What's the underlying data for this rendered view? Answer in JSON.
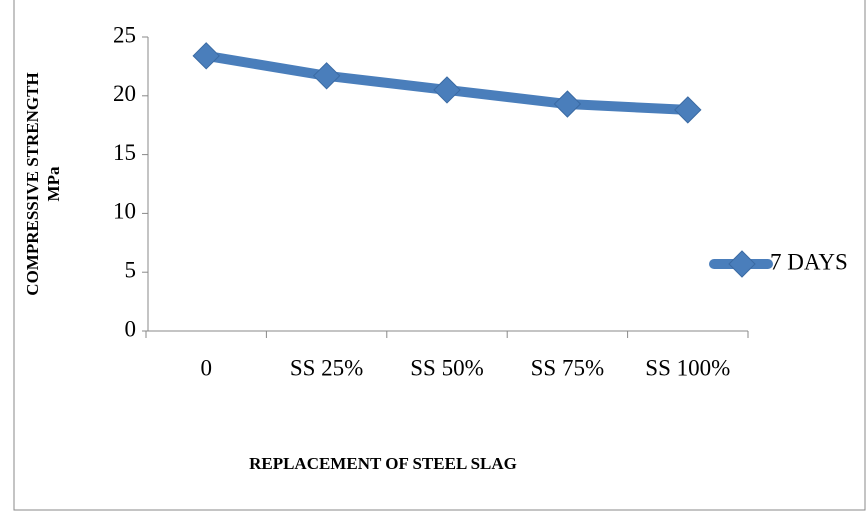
{
  "chart_data": {
    "type": "line",
    "y_label": [
      "COMPRESSIVE STRENGTH",
      "MPa"
    ],
    "x_label": "REPLACEMENT OF STEEL SLAG",
    "categories": [
      "0",
      "SS 25%",
      "SS 50%",
      "SS 75%",
      "SS 100%"
    ],
    "series": [
      {
        "name": "7 DAYS",
        "color": "#4a7ebb",
        "values": [
          23.4,
          21.7,
          20.5,
          19.3,
          18.8
        ]
      }
    ],
    "ylim": [
      0,
      25
    ],
    "yticks": [
      0,
      5,
      10,
      15,
      20,
      25
    ],
    "grid": false,
    "legend": "right"
  }
}
